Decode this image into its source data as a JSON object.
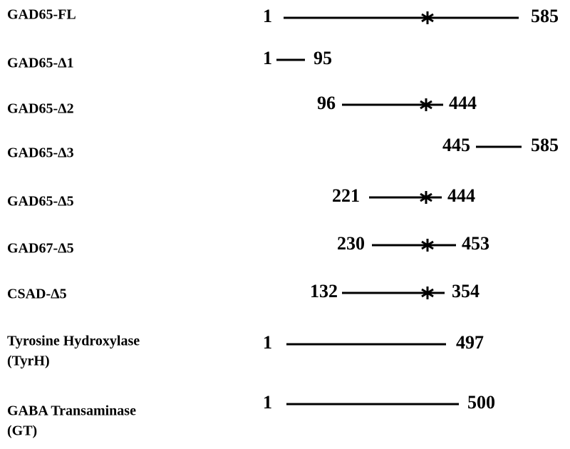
{
  "constructs": [
    {
      "label": [
        "GAD65-FL"
      ],
      "start": "1",
      "end": "585"
    },
    {
      "label": [
        "GAD65-Δ1"
      ],
      "start": "1",
      "end": "95"
    },
    {
      "label": [
        "GAD65-Δ2"
      ],
      "start": "96",
      "end": "444"
    },
    {
      "label": [
        "GAD65-Δ3"
      ],
      "start": "445",
      "end": "585"
    },
    {
      "label": [
        "GAD65-Δ5"
      ],
      "start": "221",
      "end": "444"
    },
    {
      "label": [
        "GAD67-Δ5"
      ],
      "start": "230",
      "end": "453"
    },
    {
      "label": [
        "CSAD-Δ5"
      ],
      "start": "132",
      "end": "354"
    },
    {
      "label": [
        "Tyrosine Hydroxylase",
        " (TyrH)"
      ],
      "start": "1",
      "end": "497"
    },
    {
      "label": [
        "GABA Transaminase",
        " (GT)"
      ],
      "start": "1",
      "end": "500"
    }
  ]
}
